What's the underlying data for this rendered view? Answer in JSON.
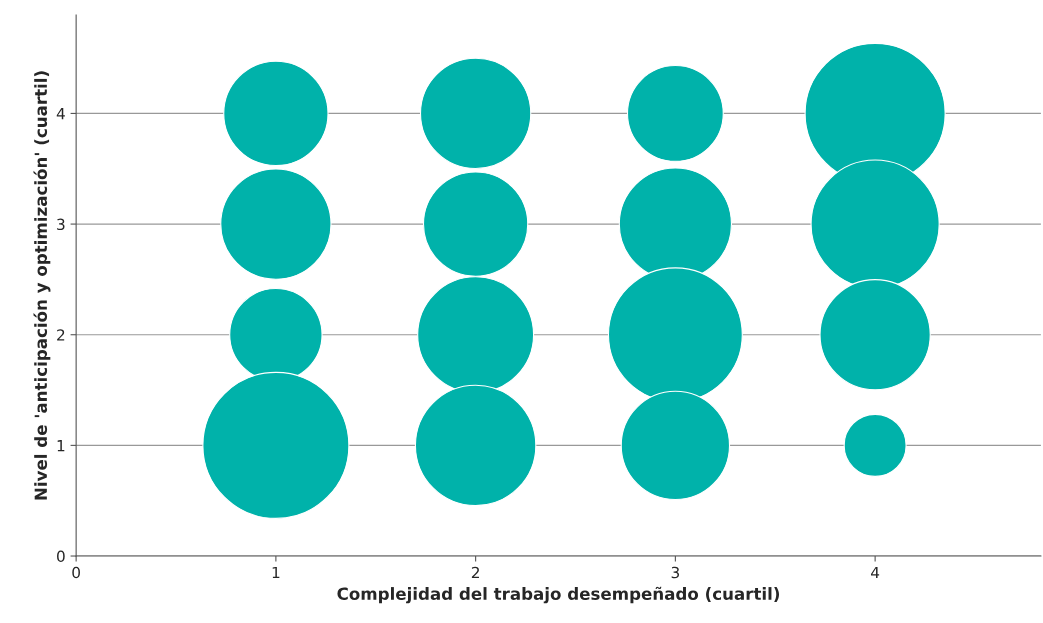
{
  "chart_data": {
    "type": "bubble",
    "xlabel": "Complejidad del trabajo desempeñado (cuartil)",
    "ylabel": "Nivel de 'anticipación y optimización' (cuartil)",
    "x": [
      1,
      1,
      1,
      1,
      2,
      2,
      2,
      2,
      3,
      3,
      3,
      3,
      4,
      4,
      4,
      4
    ],
    "series": [
      {
        "color": "#00b2aa",
        "values": [
          4,
          3,
          2,
          1,
          4,
          3,
          2,
          1,
          4,
          3,
          2,
          1,
          4,
          3,
          2,
          1
        ],
        "sizes": [
          0.51,
          0.57,
          0.4,
          1,
          0.57,
          0.51,
          0.63,
          0.68,
          0.43,
          0.59,
          0.84,
          0.55,
          0.92,
          0.77,
          0.57,
          0.18
        ]
      }
    ],
    "xlim": [
      0,
      4.83
    ],
    "ylim": [
      0,
      4.89
    ],
    "xticks": [
      0,
      1,
      2,
      3,
      4
    ],
    "yticks": [
      0,
      1,
      2,
      3,
      4
    ],
    "grid": "y",
    "legend": false
  }
}
